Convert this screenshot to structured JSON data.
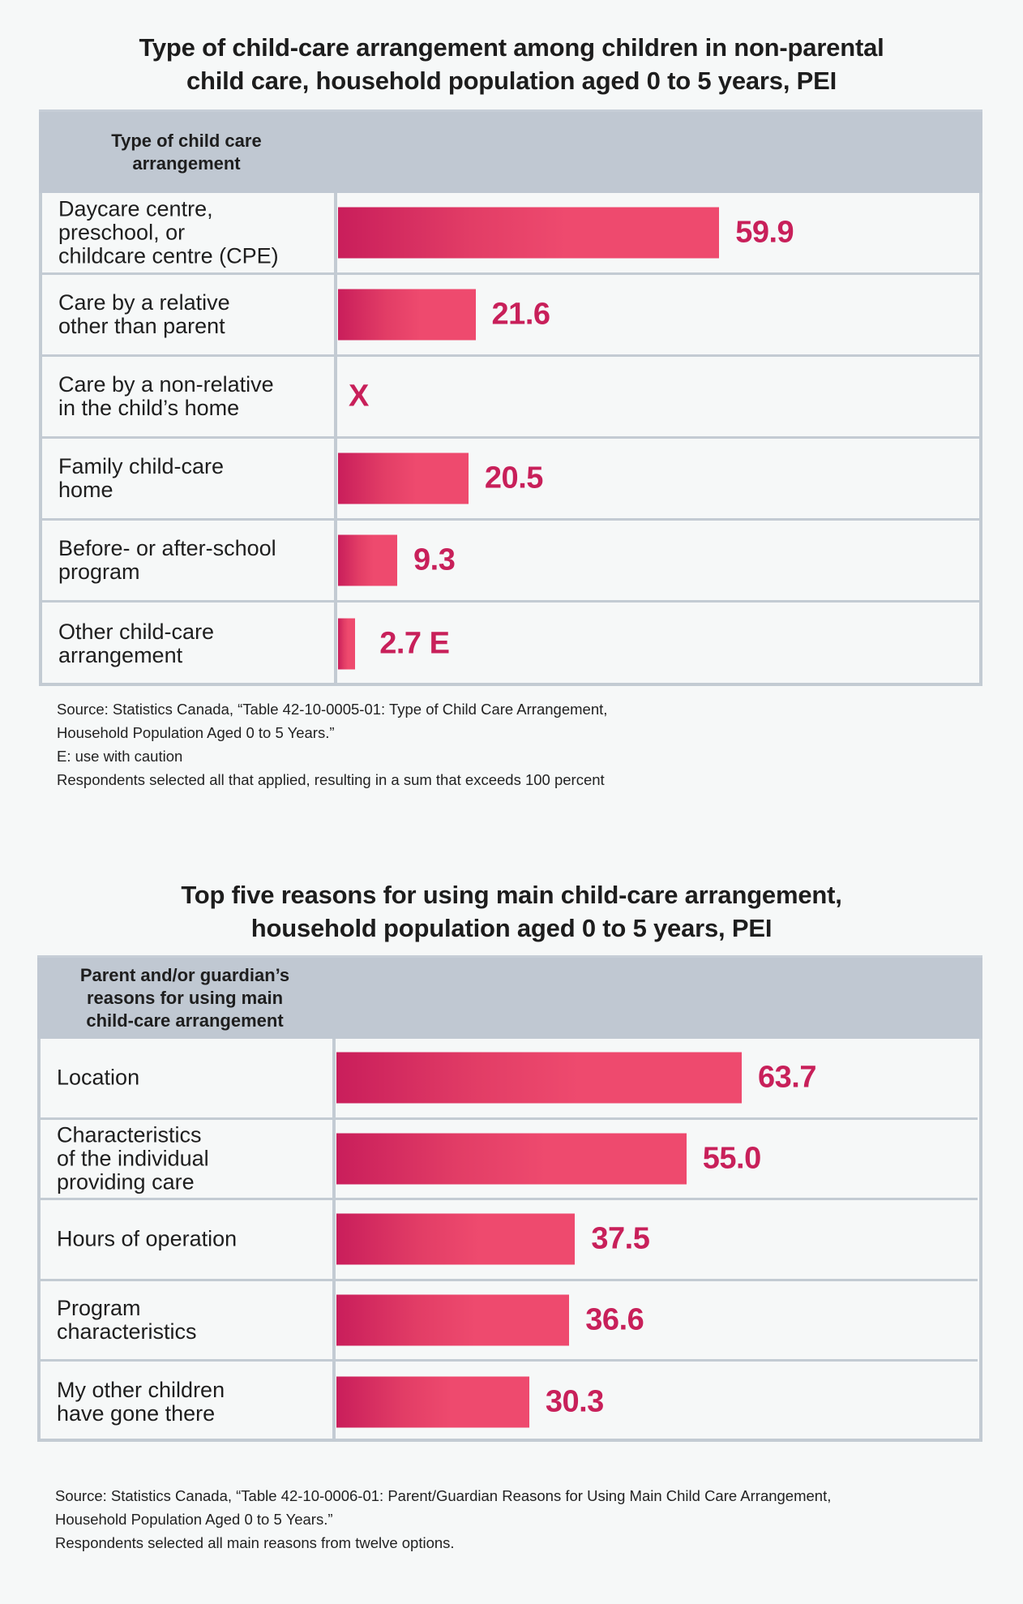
{
  "chart_data": [
    {
      "type": "bar",
      "orientation": "horizontal",
      "title": "Type of child-care arrangement among children in non-parental child care, household population aged 0 to 5 years, PEI",
      "title_lines": [
        "Type of child-care arrangement among children in non-parental",
        "child care, household population aged 0 to 5 years, PEI"
      ],
      "column_header_lines": [
        "Type of child care",
        "arrangement"
      ],
      "categories": [
        "Daycare centre, preschool, or childcare centre (CPE)",
        "Care by a relative other than parent",
        "Care by a non-relative in the child’s home",
        "Family child-care home",
        "Before- or after-school program",
        "Other child-care arrangement"
      ],
      "category_lines": [
        [
          "Daycare centre,",
          "preschool, or",
          "childcare centre (CPE)"
        ],
        [
          "Care by a relative",
          "other than parent"
        ],
        [
          "Care by a non-relative",
          "in the child’s home"
        ],
        [
          "Family child-care",
          "home"
        ],
        [
          "Before- or after-school",
          "program"
        ],
        [
          "Other child-care",
          "arrangement"
        ]
      ],
      "values": [
        59.9,
        21.6,
        null,
        20.5,
        9.3,
        2.7
      ],
      "value_labels": [
        "59.9",
        "21.6",
        "X",
        "20.5",
        "9.3",
        "2.7 E"
      ],
      "xlabel": "",
      "ylabel": "",
      "unit": "percent",
      "xlim": [
        0,
        100
      ],
      "grid": false,
      "legend": "none",
      "notes": [
        "Source: Statistics Canada, “Table 42-10-0005-01: Type of Child Care Arrangement,",
        "Household Population Aged 0 to 5 Years.”",
        "E: use with caution",
        "Respondents selected all that applied, resulting in a sum that exceeds 100 percent"
      ]
    },
    {
      "type": "bar",
      "orientation": "horizontal",
      "title": "Top five reasons for using main child-care arrangement, household population aged 0 to 5 years, PEI",
      "title_lines": [
        "Top five reasons for using main child-care arrangement,",
        "household population aged 0 to 5 years, PEI"
      ],
      "column_header_lines": [
        "Parent and/or guardian’s",
        "reasons for using main",
        "child-care arrangement"
      ],
      "categories": [
        "Location",
        "Characteristics of the individual providing care",
        "Hours of operation",
        "Program characteristics",
        "My other children have gone there"
      ],
      "category_lines": [
        [
          "Location"
        ],
        [
          "Characteristics",
          "of the individual",
          "providing care"
        ],
        [
          "Hours of operation"
        ],
        [
          "Program",
          "characteristics"
        ],
        [
          "My other children",
          "have gone there"
        ]
      ],
      "values": [
        63.7,
        55.0,
        37.5,
        36.6,
        30.3
      ],
      "value_labels": [
        "63.7",
        "55.0",
        "37.5",
        "36.6",
        "30.3"
      ],
      "xlabel": "",
      "ylabel": "",
      "unit": "percent",
      "xlim": [
        0,
        100
      ],
      "grid": false,
      "legend": "none",
      "notes": [
        "Source: Statistics Canada, “Table 42-10-0006-01: Parent/Guardian Reasons for Using Main Child Care Arrangement,",
        "Household Population Aged 0 to 5 Years.”",
        "Respondents selected all main reasons from twelve options."
      ]
    }
  ],
  "colors": {
    "background": "#f6f8f8",
    "header": "#c0c8d2",
    "border": "#c3cbd3",
    "bar_start": "#c91e5b",
    "bar_end": "#ee4a6e",
    "value_text": "#c8205a",
    "text": "#1e1e1e"
  }
}
